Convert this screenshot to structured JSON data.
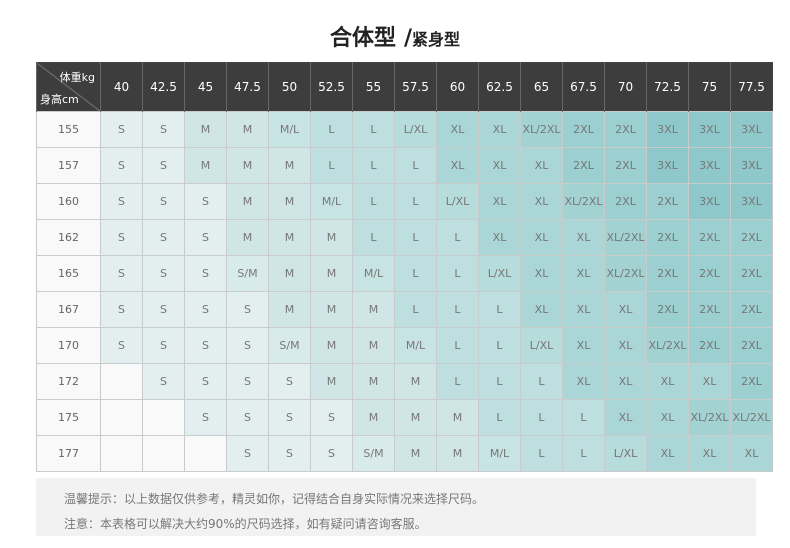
{
  "title": {
    "main": "合体型",
    "slash": "/",
    "sub": "紧身型"
  },
  "header": {
    "weight_label": "体重kg",
    "height_label": "身高cm",
    "weights": [
      "40",
      "42.5",
      "45",
      "47.5",
      "50",
      "52.5",
      "55",
      "57.5",
      "60",
      "62.5",
      "65",
      "67.5",
      "70",
      "72.5",
      "75",
      "77.5"
    ]
  },
  "rows": [
    {
      "height": "155",
      "sizes": [
        "S",
        "S",
        "M",
        "M",
        "M/L",
        "L",
        "L",
        "L/XL",
        "XL",
        "XL",
        "XL/2XL",
        "2XL",
        "2XL",
        "3XL",
        "3XL",
        "3XL"
      ]
    },
    {
      "height": "157",
      "sizes": [
        "S",
        "S",
        "M",
        "M",
        "M",
        "L",
        "L",
        "L",
        "XL",
        "XL",
        "XL",
        "2XL",
        "2XL",
        "3XL",
        "3XL",
        "3XL"
      ]
    },
    {
      "height": "160",
      "sizes": [
        "S",
        "S",
        "S",
        "M",
        "M",
        "M/L",
        "L",
        "L",
        "L/XL",
        "XL",
        "XL",
        "XL/2XL",
        "2XL",
        "2XL",
        "3XL",
        "3XL"
      ]
    },
    {
      "height": "162",
      "sizes": [
        "S",
        "S",
        "S",
        "M",
        "M",
        "M",
        "L",
        "L",
        "L",
        "XL",
        "XL",
        "XL",
        "XL/2XL",
        "2XL",
        "2XL",
        "2XL"
      ]
    },
    {
      "height": "165",
      "sizes": [
        "S",
        "S",
        "S",
        "S/M",
        "M",
        "M",
        "M/L",
        "L",
        "L",
        "L/XL",
        "XL",
        "XL",
        "XL/2XL",
        "2XL",
        "2XL",
        "2XL"
      ]
    },
    {
      "height": "167",
      "sizes": [
        "S",
        "S",
        "S",
        "S",
        "M",
        "M",
        "M",
        "L",
        "L",
        "L",
        "XL",
        "XL",
        "XL",
        "2XL",
        "2XL",
        "2XL"
      ]
    },
    {
      "height": "170",
      "sizes": [
        "S",
        "S",
        "S",
        "S",
        "S/M",
        "M",
        "M",
        "M/L",
        "L",
        "L",
        "L/XL",
        "XL",
        "XL",
        "XL/2XL",
        "2XL",
        "2XL"
      ]
    },
    {
      "height": "172",
      "sizes": [
        "",
        "S",
        "S",
        "S",
        "S",
        "M",
        "M",
        "M",
        "L",
        "L",
        "L",
        "XL",
        "XL",
        "XL",
        "XL",
        "2XL"
      ]
    },
    {
      "height": "175",
      "sizes": [
        "",
        "",
        "S",
        "S",
        "S",
        "S",
        "M",
        "M",
        "M",
        "L",
        "L",
        "L",
        "XL",
        "XL",
        "XL/2XL",
        "XL/2XL"
      ]
    },
    {
      "height": "177",
      "sizes": [
        "",
        "",
        "",
        "S",
        "S",
        "S",
        "S/M",
        "M",
        "M",
        "M/L",
        "L",
        "L",
        "L/XL",
        "XL",
        "XL",
        "XL"
      ]
    }
  ],
  "colors": {
    "S": "#e3eeee",
    "S/M": "#d9eaea",
    "M": "#d0e6e6",
    "M/L": "#c8e3e3",
    "L": "#bddfdf",
    "L/XL": "#b6dcdc",
    "XL": "#aad6d7",
    "XL/2XL": "#a3d2d3",
    "2XL": "#9bcfd0",
    "3XL": "#8ec8ca",
    "empty": "#f9f9f9"
  },
  "note": {
    "line1": "温馨提示：以上数据仅供参考，精灵如你，记得结合自身实际情况来选择尺码。",
    "line2": "注意：本表格可以解决大约90%的尺码选择，如有疑问请咨询客服。"
  }
}
